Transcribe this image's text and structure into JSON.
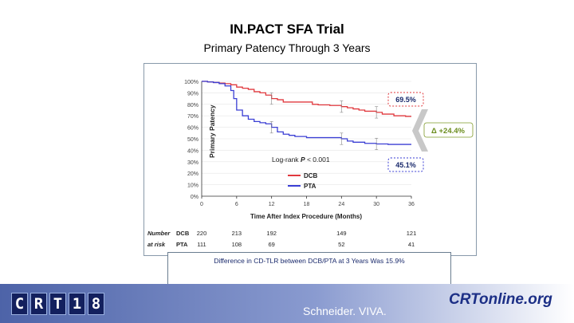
{
  "header": {
    "title": "IN.PACT SFA Trial",
    "subtitle": "Primary Patency Through 3 Years"
  },
  "chart_data": {
    "type": "line",
    "title": "Primary Patency Through 3 Years",
    "xlabel": "Time After Index Procedure (Months)",
    "ylabel": "Primary Patency",
    "x_ticks": [
      "0",
      "6",
      "12",
      "18",
      "24",
      "30",
      "36"
    ],
    "y_ticks": [
      "0%",
      "10%",
      "20%",
      "30%",
      "40%",
      "50%",
      "60%",
      "70%",
      "80%",
      "90%",
      "100%"
    ],
    "xlim": [
      0,
      36
    ],
    "ylim": [
      0,
      100
    ],
    "series": [
      {
        "name": "DCB",
        "color": "#e0393e",
        "points": [
          [
            0,
            100
          ],
          [
            1,
            99.5
          ],
          [
            2,
            99
          ],
          [
            3,
            98.5
          ],
          [
            4,
            98
          ],
          [
            5,
            97
          ],
          [
            6,
            95
          ],
          [
            7,
            94
          ],
          [
            8,
            93
          ],
          [
            9,
            91
          ],
          [
            10,
            90
          ],
          [
            11,
            88
          ],
          [
            12,
            85
          ],
          [
            13,
            84
          ],
          [
            14,
            82
          ],
          [
            16,
            82
          ],
          [
            18,
            82
          ],
          [
            19,
            80
          ],
          [
            20,
            79.5
          ],
          [
            22,
            79
          ],
          [
            24,
            78
          ],
          [
            25,
            77
          ],
          [
            26,
            76
          ],
          [
            27,
            75
          ],
          [
            28,
            74
          ],
          [
            30,
            73
          ],
          [
            31,
            71.5
          ],
          [
            33,
            70
          ],
          [
            35,
            69.5
          ],
          [
            36,
            69.5
          ]
        ]
      },
      {
        "name": "PTA",
        "color": "#3b3fd4",
        "points": [
          [
            0,
            100
          ],
          [
            1,
            99.5
          ],
          [
            2,
            99
          ],
          [
            3,
            98
          ],
          [
            4,
            96
          ],
          [
            5,
            92
          ],
          [
            5.5,
            85
          ],
          [
            6,
            75
          ],
          [
            7,
            70
          ],
          [
            8,
            67
          ],
          [
            9,
            65
          ],
          [
            10,
            64
          ],
          [
            11,
            63
          ],
          [
            12,
            60
          ],
          [
            13,
            56
          ],
          [
            14,
            54
          ],
          [
            15,
            53
          ],
          [
            16,
            52
          ],
          [
            18,
            51
          ],
          [
            20,
            51
          ],
          [
            22,
            51
          ],
          [
            24,
            50
          ],
          [
            25,
            48
          ],
          [
            26,
            47
          ],
          [
            28,
            46
          ],
          [
            30,
            45.5
          ],
          [
            32,
            45.1
          ],
          [
            34,
            45.1
          ],
          [
            36,
            45.1
          ]
        ]
      }
    ],
    "annotations": {
      "dcb_end_label": "69.5%",
      "pta_end_label": "45.1%",
      "delta_label": "Δ +24.4%",
      "logrank_prefix": "Log-rank",
      "logrank_p": "P",
      "logrank_value": " < 0.001"
    },
    "legend": {
      "position": "center",
      "entries": [
        "DCB",
        "PTA"
      ]
    },
    "at_risk": {
      "label_line1": "Number",
      "label_line2": "at risk",
      "months": [
        0,
        6,
        12,
        24,
        36
      ],
      "rows": [
        {
          "name": "DCB",
          "values": [
            "220",
            "213",
            "192",
            "149",
            "121"
          ]
        },
        {
          "name": "PTA",
          "values": [
            "111",
            "108",
            "69",
            "52",
            "41"
          ]
        }
      ]
    }
  },
  "note": {
    "text": "Difference in CD-TLR between DCB/PTA at 3 Years Was 15.9%"
  },
  "footer": {
    "logo_letters": [
      "C",
      "R",
      "T",
      "1",
      "8"
    ],
    "credit": "Schneider. VIVA.",
    "site": "CRTonline.org",
    "colors": {
      "logo": "#13205e",
      "bar_start": "#4d63a8"
    }
  }
}
